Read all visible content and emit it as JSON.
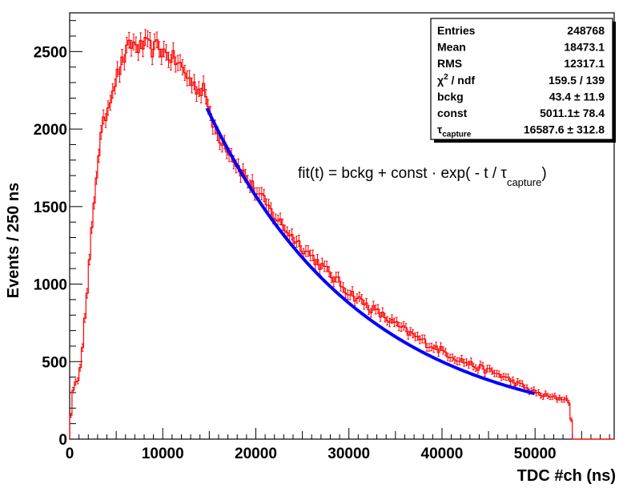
{
  "chart_data": {
    "type": "histogram",
    "title": "",
    "xlabel": "TDC #ch (ns)",
    "ylabel": "Events / 250 ns",
    "xlim": [
      0,
      58500
    ],
    "ylim": [
      0,
      2750
    ],
    "x_ticks": [
      0,
      10000,
      20000,
      30000,
      40000,
      50000
    ],
    "x_tick_labels": [
      "0",
      "10000",
      "20000",
      "30000",
      "40000",
      "50000"
    ],
    "y_ticks": [
      0,
      500,
      1000,
      1500,
      2000,
      2500
    ],
    "y_tick_labels": [
      "0",
      "500",
      "1000",
      "1500",
      "2000",
      "2500"
    ],
    "bin_width": 250,
    "histogram_color": "#ff0000",
    "fit_color": "#0000ff",
    "histogram_profile": {
      "description_of_shape": "rising edge then exponential decay",
      "x": [
        0,
        250,
        1000,
        1500,
        2000,
        2500,
        3000,
        3500,
        4000,
        4500,
        5000,
        5500,
        6000,
        6500,
        7000,
        7500,
        8000,
        8500,
        9000,
        9500,
        10000,
        11000,
        12000,
        12500,
        13000,
        13500,
        14000,
        14500,
        15000,
        16000,
        17000,
        18000,
        19000,
        20000,
        22000,
        24000,
        26000,
        28000,
        30000,
        32000,
        34000,
        36000,
        38000,
        40000,
        42000,
        44000,
        46000,
        48000,
        50000,
        51000,
        52000,
        53000,
        53750,
        54000,
        58500
      ],
      "y": [
        50,
        280,
        420,
        680,
        1020,
        1450,
        1800,
        2000,
        2120,
        2250,
        2330,
        2400,
        2480,
        2540,
        2550,
        2520,
        2540,
        2530,
        2510,
        2540,
        2500,
        2460,
        2400,
        2350,
        2310,
        2270,
        2250,
        2300,
        2070,
        1960,
        1880,
        1770,
        1680,
        1600,
        1440,
        1300,
        1180,
        1060,
        950,
        860,
        780,
        700,
        630,
        570,
        510,
        460,
        420,
        360,
        300,
        280,
        265,
        265,
        245,
        0,
        0
      ]
    },
    "fit": {
      "formula_prefix": "fit(t) = bckg + const · exp( - t / ",
      "formula_tau": "τ",
      "formula_tau_sub": "capture",
      "formula_suffix": ")",
      "x_range": [
        14750,
        50000
      ],
      "bckg": 43.4,
      "const": 5011.1,
      "tau_capture": 16587.6
    },
    "stats_box": {
      "rows": [
        {
          "label": "Entries",
          "label_sup": "",
          "label_sub": "",
          "value": "248768"
        },
        {
          "label": "Mean",
          "label_sup": "",
          "label_sub": "",
          "value": "18473.1"
        },
        {
          "label": "RMS",
          "label_sup": "",
          "label_sub": "",
          "value": "12317.1"
        },
        {
          "label": "χ",
          "label_sup": "2",
          "label_tail": " / ndf",
          "label_sub": "",
          "value": "159.5 / 139"
        },
        {
          "label": "bckg",
          "label_sup": "",
          "label_sub": "",
          "value": "43.4 ± 11.9"
        },
        {
          "label": "const",
          "label_sup": "",
          "label_sub": "",
          "value": "5011.1± 78.4"
        },
        {
          "label": "τ",
          "label_sup": "",
          "label_sub": "capture",
          "value": "16587.6 ± 312.8"
        }
      ]
    }
  }
}
